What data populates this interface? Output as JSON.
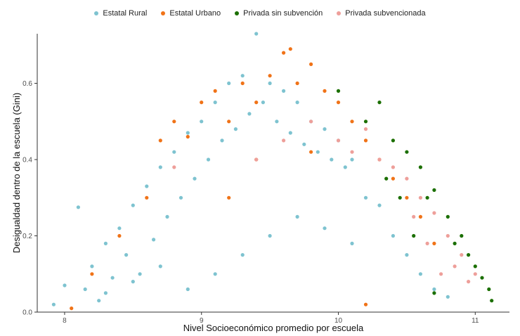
{
  "chart_data": {
    "type": "scatter",
    "title": "",
    "xlabel": "Nivel Socioeconómico promedio por escuela",
    "ylabel": "Desigualdad dentro de la escuela (Gini)",
    "xlim": [
      7.8,
      11.25
    ],
    "ylim": [
      0,
      0.73
    ],
    "x_ticks": [
      8,
      9,
      10,
      11
    ],
    "y_ticks": [
      0.0,
      0.2,
      0.4,
      0.6
    ],
    "x_tick_labels": [
      "8",
      "9",
      "10",
      "11"
    ],
    "y_tick_labels": [
      "0.0",
      "0.2",
      "0.4",
      "0.6"
    ],
    "legend_position": "top",
    "grid": false,
    "series": [
      {
        "name": "Estatal Rural",
        "color": "#7ec3d0",
        "points": [
          [
            7.92,
            0.02
          ],
          [
            8.0,
            0.07
          ],
          [
            8.1,
            0.275
          ],
          [
            8.15,
            0.06
          ],
          [
            8.2,
            0.12
          ],
          [
            8.25,
            0.03
          ],
          [
            8.3,
            0.18
          ],
          [
            8.35,
            0.09
          ],
          [
            8.4,
            0.22
          ],
          [
            8.45,
            0.15
          ],
          [
            8.5,
            0.28
          ],
          [
            8.55,
            0.1
          ],
          [
            8.6,
            0.33
          ],
          [
            8.65,
            0.19
          ],
          [
            8.7,
            0.38
          ],
          [
            8.75,
            0.25
          ],
          [
            8.8,
            0.42
          ],
          [
            8.85,
            0.3
          ],
          [
            8.9,
            0.47
          ],
          [
            8.95,
            0.35
          ],
          [
            9.0,
            0.5
          ],
          [
            9.05,
            0.4
          ],
          [
            9.1,
            0.55
          ],
          [
            9.15,
            0.45
          ],
          [
            9.2,
            0.6
          ],
          [
            9.25,
            0.48
          ],
          [
            9.3,
            0.62
          ],
          [
            9.35,
            0.52
          ],
          [
            9.4,
            0.73
          ],
          [
            9.45,
            0.55
          ],
          [
            9.5,
            0.6
          ],
          [
            9.55,
            0.5
          ],
          [
            9.6,
            0.58
          ],
          [
            9.65,
            0.47
          ],
          [
            9.7,
            0.55
          ],
          [
            9.75,
            0.44
          ],
          [
            9.8,
            0.5
          ],
          [
            9.85,
            0.42
          ],
          [
            9.9,
            0.48
          ],
          [
            9.95,
            0.4
          ],
          [
            10.0,
            0.45
          ],
          [
            10.05,
            0.38
          ],
          [
            10.1,
            0.4
          ],
          [
            10.2,
            0.3
          ],
          [
            10.3,
            0.28
          ],
          [
            10.4,
            0.2
          ],
          [
            10.5,
            0.15
          ],
          [
            10.6,
            0.1
          ],
          [
            10.7,
            0.06
          ],
          [
            10.8,
            0.04
          ],
          [
            8.3,
            0.05
          ],
          [
            8.5,
            0.08
          ],
          [
            8.7,
            0.12
          ],
          [
            8.9,
            0.06
          ],
          [
            9.1,
            0.1
          ],
          [
            9.3,
            0.15
          ],
          [
            9.5,
            0.2
          ],
          [
            9.7,
            0.25
          ],
          [
            9.9,
            0.22
          ],
          [
            10.1,
            0.18
          ]
        ]
      },
      {
        "name": "Estatal Urbano",
        "color": "#f07318",
        "points": [
          [
            8.05,
            0.01
          ],
          [
            8.2,
            0.1
          ],
          [
            8.4,
            0.2
          ],
          [
            8.6,
            0.3
          ],
          [
            8.7,
            0.45
          ],
          [
            8.8,
            0.5
          ],
          [
            8.9,
            0.46
          ],
          [
            9.0,
            0.55
          ],
          [
            9.1,
            0.58
          ],
          [
            9.2,
            0.5
          ],
          [
            9.3,
            0.6
          ],
          [
            9.4,
            0.55
          ],
          [
            9.5,
            0.62
          ],
          [
            9.6,
            0.68
          ],
          [
            9.65,
            0.69
          ],
          [
            9.7,
            0.6
          ],
          [
            9.8,
            0.65
          ],
          [
            9.9,
            0.58
          ],
          [
            10.0,
            0.55
          ],
          [
            10.1,
            0.5
          ],
          [
            10.2,
            0.45
          ],
          [
            10.3,
            0.4
          ],
          [
            10.4,
            0.35
          ],
          [
            10.5,
            0.3
          ],
          [
            10.6,
            0.25
          ],
          [
            10.7,
            0.18
          ],
          [
            10.2,
            0.02
          ],
          [
            9.2,
            0.3
          ],
          [
            9.4,
            0.4
          ],
          [
            9.8,
            0.42
          ]
        ]
      },
      {
        "name": "Privada sin subvención",
        "color": "#1b6f00",
        "points": [
          [
            10.0,
            0.58
          ],
          [
            10.2,
            0.5
          ],
          [
            10.3,
            0.55
          ],
          [
            10.4,
            0.45
          ],
          [
            10.5,
            0.42
          ],
          [
            10.6,
            0.38
          ],
          [
            10.7,
            0.32
          ],
          [
            10.8,
            0.25
          ],
          [
            10.9,
            0.2
          ],
          [
            11.0,
            0.12
          ],
          [
            11.05,
            0.09
          ],
          [
            11.1,
            0.06
          ],
          [
            11.12,
            0.03
          ],
          [
            10.95,
            0.15
          ],
          [
            10.85,
            0.18
          ],
          [
            10.65,
            0.3
          ],
          [
            10.55,
            0.2
          ],
          [
            10.45,
            0.3
          ],
          [
            10.35,
            0.35
          ],
          [
            10.7,
            0.05
          ]
        ]
      },
      {
        "name": "Privada subvencionada",
        "color": "#ee9f9a",
        "points": [
          [
            8.8,
            0.38
          ],
          [
            9.4,
            0.4
          ],
          [
            9.6,
            0.45
          ],
          [
            9.8,
            0.5
          ],
          [
            10.0,
            0.45
          ],
          [
            10.1,
            0.42
          ],
          [
            10.2,
            0.48
          ],
          [
            10.3,
            0.4
          ],
          [
            10.4,
            0.38
          ],
          [
            10.5,
            0.35
          ],
          [
            10.6,
            0.3
          ],
          [
            10.7,
            0.26
          ],
          [
            10.8,
            0.2
          ],
          [
            10.9,
            0.15
          ],
          [
            11.0,
            0.1
          ],
          [
            10.75,
            0.1
          ],
          [
            10.55,
            0.25
          ],
          [
            10.65,
            0.18
          ],
          [
            10.85,
            0.12
          ],
          [
            10.95,
            0.08
          ]
        ]
      }
    ]
  }
}
